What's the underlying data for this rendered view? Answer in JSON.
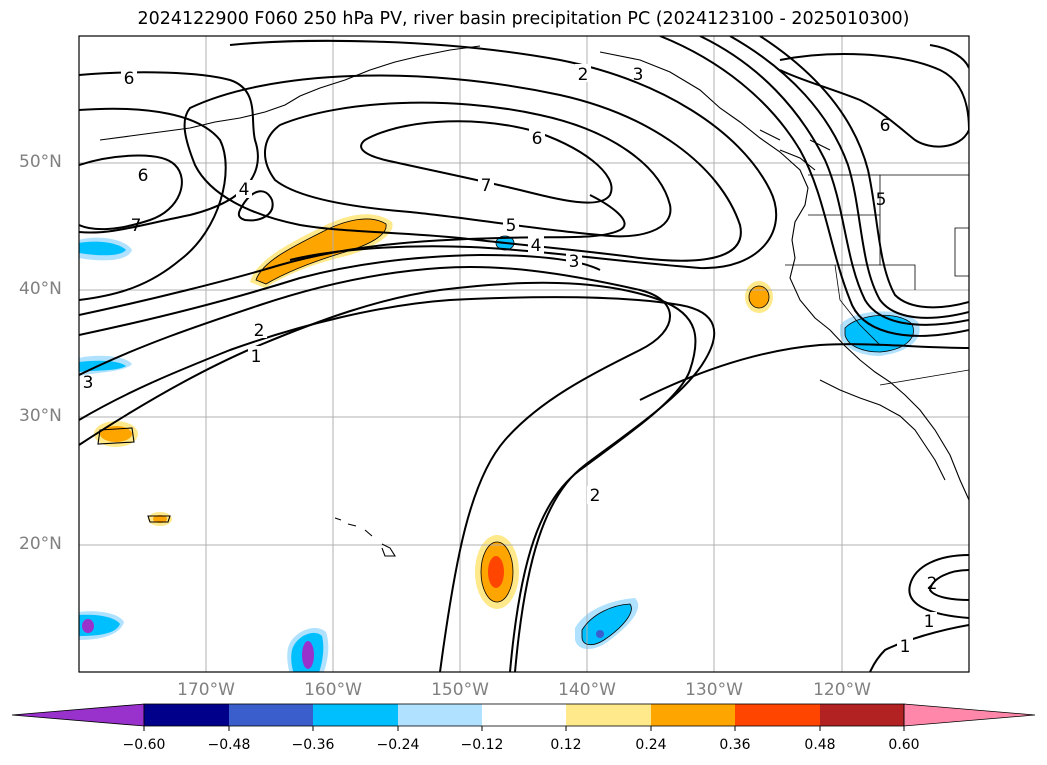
{
  "title": "2024122900 F060 250 hPa PV, river basin precipitation PC (2024123100 - 2025010300)",
  "map": {
    "lat_labels": [
      "50°N",
      "40°N",
      "30°N",
      "20°N"
    ],
    "lon_labels": [
      "170°W",
      "160°W",
      "150°W",
      "140°W",
      "130°W",
      "120°W"
    ],
    "contour_labels": [
      "6",
      "2",
      "3",
      "6",
      "6",
      "7",
      "5",
      "4",
      "3",
      "6",
      "4",
      "7",
      "5",
      "2",
      "1",
      "3",
      "2",
      "2",
      "1",
      "1"
    ]
  },
  "colorbar": {
    "ticks": [
      "−0.60",
      "−0.48",
      "−0.36",
      "−0.24",
      "−0.12",
      "0.12",
      "0.24",
      "0.36",
      "0.48",
      "0.60"
    ],
    "colors": [
      "#9932cc",
      "#00008b",
      "#3a5fcd",
      "#00bfff",
      "#b0e2ff",
      "#ffffff",
      "#ffe98a",
      "#ffa500",
      "#ff4500",
      "#b22222",
      "#ff88aa"
    ]
  }
}
